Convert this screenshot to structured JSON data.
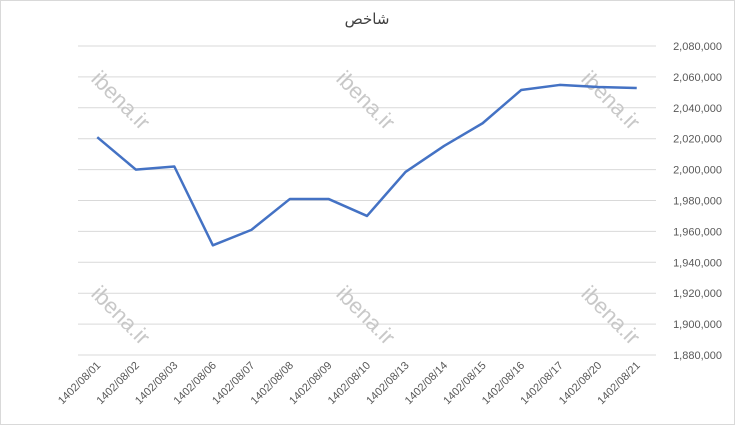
{
  "chart_data": {
    "type": "line",
    "title": "شاخص",
    "watermark": "ibena.ir",
    "categories": [
      "1402/08/01",
      "1402/08/02",
      "1402/08/03",
      "1402/08/06",
      "1402/08/07",
      "1402/08/08",
      "1402/08/09",
      "1402/08/10",
      "1402/08/13",
      "1402/08/14",
      "1402/08/15",
      "1402/08/16",
      "1402/08/17",
      "1402/08/20",
      "1402/08/21"
    ],
    "series": [
      {
        "color": "#4472c4",
        "values": [
          2021000,
          2000000,
          2002000,
          1951000,
          1961000,
          1981000,
          1981000,
          1970000,
          1998500,
          2015300,
          2030000,
          2051500,
          2054800,
          2053500,
          2052800
        ]
      }
    ],
    "ylim": [
      1880000,
      2080000
    ],
    "yticks": [
      {
        "value": 1880000,
        "label": "1,880,000"
      },
      {
        "value": 1900000,
        "label": "1,900,000"
      },
      {
        "value": 1920000,
        "label": "1,920,000"
      },
      {
        "value": 1940000,
        "label": "1,940,000"
      },
      {
        "value": 1960000,
        "label": "1,960,000"
      },
      {
        "value": 1980000,
        "label": "1,980,000"
      },
      {
        "value": 2000000,
        "label": "2,000,000"
      },
      {
        "value": 2020000,
        "label": "2,020,000"
      },
      {
        "value": 2040000,
        "label": "2,040,000"
      },
      {
        "value": 2060000,
        "label": "2,060,000"
      },
      {
        "value": 2080000,
        "label": "2,080,000"
      }
    ],
    "grid": true
  }
}
